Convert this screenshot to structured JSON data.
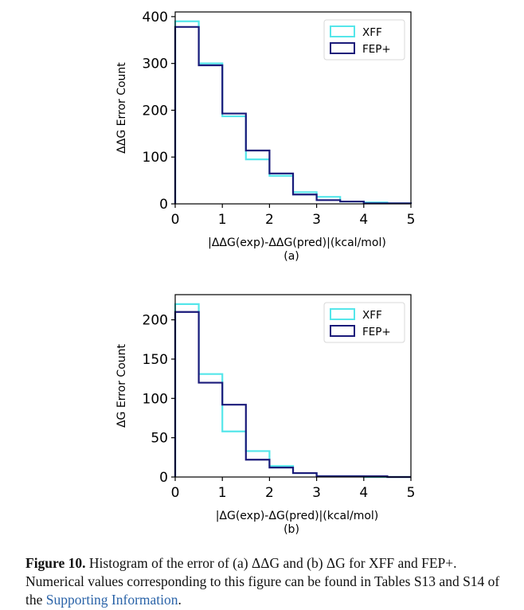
{
  "chart_data": [
    {
      "type": "histogram",
      "panel_label": "(a)",
      "xlabel": "|ΔΔG(exp)-ΔΔG(pred)|(kcal/mol)",
      "ylabel": "ΔΔG Error Count",
      "xlim": [
        0,
        5
      ],
      "ylim": [
        0,
        410
      ],
      "xticks": [
        "0",
        "1",
        "2",
        "3",
        "4",
        "5"
      ],
      "yticks": [
        "0",
        "100",
        "200",
        "300",
        "400"
      ],
      "bin_edges": [
        0,
        0.5,
        1.0,
        1.5,
        2.0,
        2.5,
        3.0,
        3.5,
        4.0,
        4.5,
        5.0
      ],
      "legend_position": "top-right",
      "series": [
        {
          "name": "XFF",
          "color": "#55e6ea",
          "values": [
            390,
            300,
            187,
            95,
            60,
            25,
            15,
            5,
            3,
            1
          ]
        },
        {
          "name": "FEP+",
          "color": "#1a1a7a",
          "values": [
            378,
            296,
            193,
            114,
            65,
            20,
            8,
            5,
            1,
            1
          ]
        }
      ]
    },
    {
      "type": "histogram",
      "panel_label": "(b)",
      "xlabel": "|ΔG(exp)-ΔG(pred)|(kcal/mol)",
      "ylabel": "ΔG Error Count",
      "xlim": [
        0,
        5
      ],
      "ylim": [
        0,
        232
      ],
      "xticks": [
        "0",
        "1",
        "2",
        "3",
        "4",
        "5"
      ],
      "yticks": [
        "0",
        "50",
        "100",
        "150",
        "200"
      ],
      "bin_edges": [
        0,
        0.5,
        1.0,
        1.5,
        2.0,
        2.5,
        3.0,
        3.5,
        4.0,
        4.5,
        5.0
      ],
      "legend_position": "top-right",
      "series": [
        {
          "name": "XFF",
          "color": "#55e6ea",
          "values": [
            220,
            131,
            58,
            33,
            14,
            5,
            1,
            1,
            0,
            0
          ]
        },
        {
          "name": "FEP+",
          "color": "#1a1a7a",
          "values": [
            210,
            120,
            92,
            22,
            12,
            5,
            1,
            1,
            1,
            0
          ]
        }
      ]
    }
  ],
  "caption": {
    "label": "Figure 10.",
    "text": " Histogram of the error of (a) ΔΔG and (b) ΔG for XFF and FEP+. Numerical values corresponding to this figure can be found in Tables S13 and S14 of the ",
    "link_text": "Supporting Information",
    "end": "."
  }
}
